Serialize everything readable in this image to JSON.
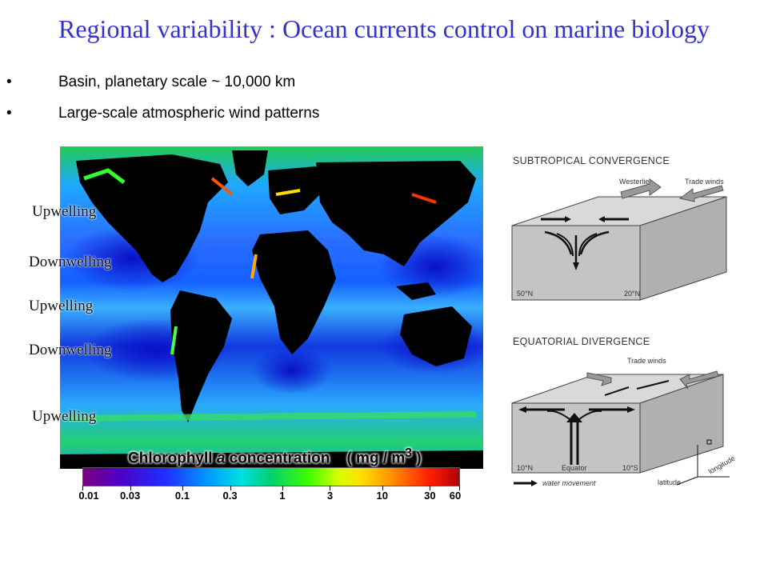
{
  "title": "Regional variability : Ocean currents control on marine biology",
  "bullets": [
    {
      "marker": "•",
      "text": "Basin, planetary scale ~ 10,000 km"
    },
    {
      "marker": "•",
      "text": "Large-scale atmospheric wind patterns"
    }
  ],
  "map_labels": {
    "l1": "Upwelling",
    "l2": "Downwelling",
    "l3": "Upwelling",
    "l4": "Downwelling",
    "l5": "Upwelling"
  },
  "colorbar": {
    "title_pre": "Chlorophyll ",
    "title_italic": "a",
    "title_post": " concentration",
    "units": "( mg / m",
    "units_sup": "3",
    "units_close": " )",
    "ticks": [
      "0.01",
      "0.03",
      "0.1",
      "0.3",
      "1",
      "3",
      "10",
      "30",
      "60"
    ]
  },
  "diagram_top": {
    "title": "SUBTROPICAL CONVERGENCE",
    "westerlies": "Westerlies",
    "trade_winds": "Trade winds",
    "lat_left": "50°N",
    "lat_right": "20°N"
  },
  "diagram_bottom": {
    "title": "EQUATORIAL DIVERGENCE",
    "trade_winds": "Trade winds",
    "lat_left": "10°N",
    "equator": "Equator",
    "lat_right": "10°S",
    "legend": "water movement",
    "axis_latitude": "latitude",
    "axis_longitude": "longitude"
  },
  "colors": {
    "title": "#3333cc",
    "ocean_deep": "#0a1fd6",
    "ocean_mid": "#1f7fff",
    "ocean_green": "#22cc44",
    "land": "#000000"
  }
}
